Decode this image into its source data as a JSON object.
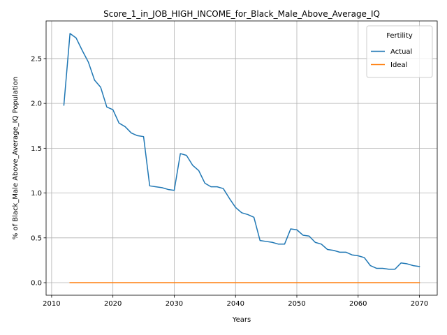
{
  "chart_data": {
    "type": "line",
    "title": "Score_1_in_JOB_HIGH_INCOME_for_Black_Male_Above_Average_IQ",
    "xlabel": "Years",
    "ylabel": "% of Black_Male Above_Average_IQ Population",
    "xlim": [
      2009.1,
      2072.9
    ],
    "ylim": [
      -0.14,
      2.92
    ],
    "x_ticks": [
      2010,
      2020,
      2030,
      2040,
      2050,
      2060,
      2070
    ],
    "x_tick_labels": [
      "2010",
      "2020",
      "2030",
      "2040",
      "2050",
      "2060",
      "2070"
    ],
    "y_ticks": [
      0.0,
      0.5,
      1.0,
      1.5,
      2.0,
      2.5
    ],
    "y_tick_labels": [
      "0.0",
      "0.5",
      "1.0",
      "1.5",
      "2.0",
      "2.5"
    ],
    "grid": true,
    "legend": {
      "title": "Fertility",
      "position": "top-right"
    },
    "series": [
      {
        "name": "Actual",
        "color": "#1f77b4",
        "x": [
          2012,
          2013,
          2014,
          2015,
          2016,
          2017,
          2018,
          2019,
          2020,
          2021,
          2022,
          2023,
          2024,
          2025,
          2026,
          2027,
          2028,
          2029,
          2030,
          2031,
          2032,
          2033,
          2034,
          2035,
          2036,
          2037,
          2038,
          2039,
          2040,
          2041,
          2042,
          2043,
          2044,
          2045,
          2046,
          2047,
          2048,
          2049,
          2050,
          2051,
          2052,
          2053,
          2054,
          2055,
          2056,
          2057,
          2058,
          2059,
          2060,
          2061,
          2062,
          2063,
          2064,
          2065,
          2066,
          2067,
          2068,
          2069,
          2070
        ],
        "values": [
          1.98,
          2.78,
          2.73,
          2.59,
          2.46,
          2.26,
          2.18,
          1.96,
          1.93,
          1.78,
          1.74,
          1.67,
          1.64,
          1.63,
          1.08,
          1.07,
          1.06,
          1.04,
          1.03,
          1.44,
          1.42,
          1.31,
          1.25,
          1.11,
          1.07,
          1.07,
          1.05,
          0.94,
          0.84,
          0.78,
          0.76,
          0.73,
          0.47,
          0.46,
          0.45,
          0.43,
          0.43,
          0.6,
          0.59,
          0.53,
          0.52,
          0.45,
          0.43,
          0.37,
          0.36,
          0.34,
          0.34,
          0.31,
          0.3,
          0.28,
          0.19,
          0.16,
          0.16,
          0.15,
          0.15,
          0.22,
          0.21,
          0.19,
          0.18
        ]
      },
      {
        "name": "Ideal",
        "color": "#ff7f0e",
        "x": [
          2013,
          2014,
          2015,
          2016,
          2017,
          2018,
          2019,
          2020,
          2021,
          2022,
          2023,
          2024,
          2025,
          2026,
          2027,
          2028,
          2029,
          2030,
          2031,
          2032,
          2033,
          2034,
          2035,
          2036,
          2037,
          2038,
          2039,
          2040,
          2041,
          2042,
          2043,
          2044,
          2045,
          2046,
          2047,
          2048,
          2049,
          2050,
          2051,
          2052,
          2053,
          2054,
          2055,
          2056,
          2057,
          2058,
          2059,
          2060,
          2061,
          2062,
          2063,
          2064,
          2065,
          2066,
          2067,
          2068,
          2069,
          2070
        ],
        "values": [
          0,
          0,
          0,
          0,
          0,
          0,
          0,
          0,
          0,
          0,
          0,
          0,
          0,
          0,
          0,
          0,
          0,
          0,
          0,
          0,
          0,
          0,
          0,
          0,
          0,
          0,
          0,
          0,
          0,
          0,
          0,
          0,
          0,
          0,
          0,
          0,
          0,
          0,
          0,
          0,
          0,
          0,
          0,
          0,
          0,
          0,
          0,
          0,
          0,
          0,
          0,
          0,
          0,
          0,
          0,
          0,
          0,
          0
        ]
      }
    ]
  }
}
